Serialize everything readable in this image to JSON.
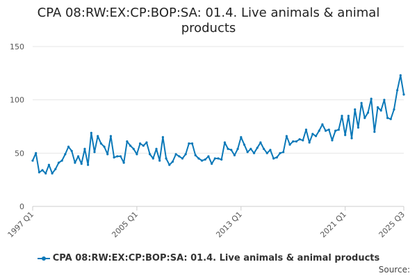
{
  "chart_data": {
    "type": "line",
    "title": "CPA 08:RW:EX:CP:BOP:SA: 01.4. Live animals & animal products",
    "xlabel": "",
    "ylabel": "",
    "ylim": [
      0,
      150
    ],
    "yticks": [
      0,
      50,
      100,
      150
    ],
    "x_start": "1997 Q1",
    "x_end": "2025 Q3",
    "xtick_labels": [
      {
        "label": "1997 Q1",
        "index": 0
      },
      {
        "label": "2005 Q1",
        "index": 32
      },
      {
        "label": "2013 Q1",
        "index": 64
      },
      {
        "label": "2021 Q1",
        "index": 96
      },
      {
        "label": "2025 Q3",
        "index": 114
      }
    ],
    "grid": true,
    "legend_position": "bottom",
    "series": [
      {
        "name": "CPA 08:RW:EX:CP:BOP:SA: 01.4. Live animals & animal products",
        "color": "#0a78b8",
        "values": [
          43,
          50,
          32,
          34,
          31,
          39,
          31,
          35,
          41,
          43,
          49,
          56,
          52,
          41,
          47,
          40,
          54,
          39,
          69,
          51,
          66,
          59,
          56,
          49,
          66,
          46,
          47,
          47,
          41,
          61,
          57,
          54,
          49,
          59,
          57,
          60,
          49,
          45,
          54,
          43,
          65,
          45,
          39,
          42,
          49,
          47,
          45,
          49,
          59,
          59,
          48,
          45,
          43,
          44,
          47,
          40,
          45,
          45,
          44,
          60,
          54,
          53,
          48,
          54,
          65,
          58,
          51,
          54,
          50,
          55,
          60,
          54,
          50,
          53,
          45,
          46,
          50,
          51,
          66,
          58,
          61,
          61,
          63,
          62,
          72,
          60,
          68,
          66,
          71,
          77,
          71,
          72,
          62,
          71,
          72,
          85,
          67,
          85,
          64,
          91,
          74,
          97,
          83,
          88,
          101,
          70,
          93,
          90,
          100,
          83,
          82,
          91,
          109,
          123,
          105
        ]
      }
    ]
  },
  "legend": {
    "label": "CPA 08:RW:EX:CP:BOP:SA: 01.4. Live animals & animal products"
  },
  "footer": {
    "source": "Source:"
  }
}
